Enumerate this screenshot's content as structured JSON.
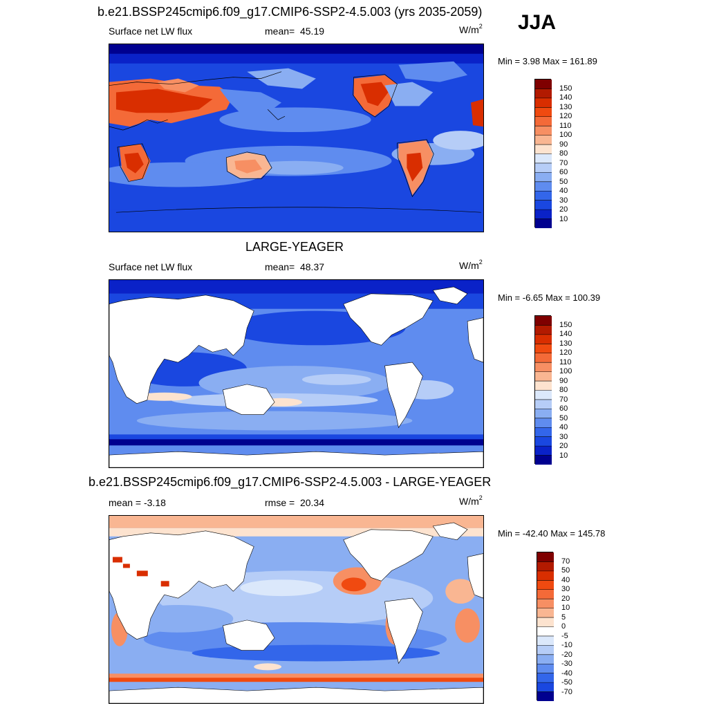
{
  "season": "JJA",
  "panels": [
    {
      "title": "b.e21.BSSP245cmip6.f09_g17.CMIP6-SSP2-4.5.003 (yrs 2035-2059)",
      "left": "Surface net LW flux",
      "center_label": "mean=",
      "center_value": "45.19",
      "units_base": "W/m",
      "units_exp": "2",
      "minmax": "Min =   3.98 Max = 161.89"
    },
    {
      "title": "LARGE-YEAGER",
      "left": "Surface net LW flux",
      "center_label": "mean=",
      "center_value": "48.37",
      "units_base": "W/m",
      "units_exp": "2",
      "minmax": "Min =  -6.65 Max = 100.39"
    },
    {
      "title": "b.e21.BSSP245cmip6.f09_g17.CMIP6-SSP2-4.5.003 - LARGE-YEAGER",
      "left": "mean =  -3.18",
      "center_label": "rmse =",
      "center_value": "20.34",
      "units_base": "W/m",
      "units_exp": "2",
      "minmax": "Min = -42.40 Max = 145.78"
    }
  ],
  "colorbars": {
    "flux": {
      "labels": [
        "150",
        "140",
        "130",
        "120",
        "110",
        "100",
        "90",
        "80",
        "70",
        "60",
        "50",
        "40",
        "30",
        "20",
        "10"
      ],
      "colors": [
        "#7f0000",
        "#b21a00",
        "#d92e00",
        "#f04a10",
        "#f46a38",
        "#f78f63",
        "#f9b692",
        "#fde3cf",
        "#dbe8fb",
        "#b6cdf7",
        "#8aaef2",
        "#5f8cef",
        "#3366ea",
        "#1a47e0",
        "#0a22c8",
        "#00008f"
      ]
    },
    "diff": {
      "labels": [
        "70",
        "50",
        "40",
        "30",
        "20",
        "10",
        "5",
        "0",
        "-5",
        "-10",
        "-20",
        "-30",
        "-40",
        "-50",
        "-70"
      ],
      "colors": [
        "#7f0000",
        "#b21a00",
        "#d92e00",
        "#f04a10",
        "#f46a38",
        "#f78f63",
        "#f9b692",
        "#fde3cf",
        "#ffffff",
        "#dbe8fb",
        "#b6cdf7",
        "#8aaef2",
        "#5f8cef",
        "#3366ea",
        "#1a47e0",
        "#00008f"
      ]
    }
  }
}
